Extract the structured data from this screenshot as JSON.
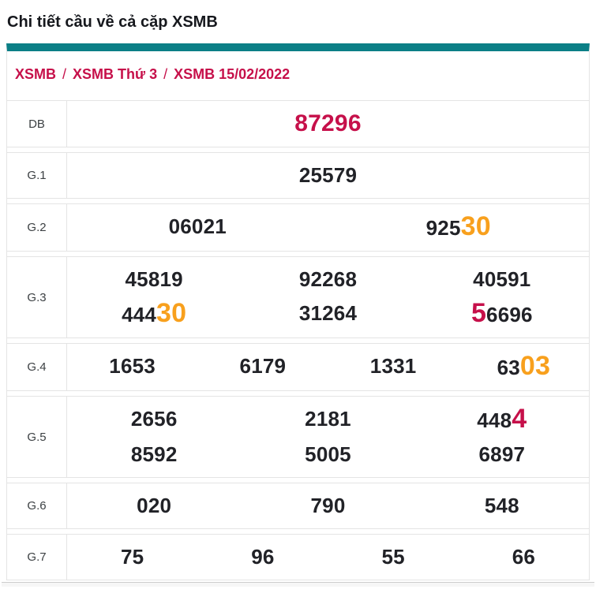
{
  "page_title": "Chi tiết cầu về cả cặp XSMB",
  "breadcrumb": {
    "separator": "/",
    "items": [
      {
        "label": "XSMB"
      },
      {
        "label": "XSMB Thứ 3"
      },
      {
        "label": "XSMB 15/02/2022"
      }
    ]
  },
  "colors": {
    "teal": "#0b7f86",
    "crimson": "#c6104a",
    "orange": "#f8a01d",
    "number": "#212227",
    "border": "#e4e4e4",
    "label": "#3c4043",
    "title": "#16181d",
    "strip_bg": "#f6f6f6",
    "strip_border": "#cdcdcd"
  },
  "results": {
    "highlight_legend": {
      "o": "orange-highlight-digits",
      "r": "crimson-highlight-digits",
      "db": "special-prize-crimson",
      "n": "normal-digits"
    },
    "rows": [
      {
        "label": "DB",
        "lines": [
          [
            [
              {
                "t": "87296",
                "s": "db"
              }
            ]
          ]
        ]
      },
      {
        "label": "G.1",
        "lines": [
          [
            [
              {
                "t": "25579",
                "s": "n"
              }
            ]
          ]
        ]
      },
      {
        "label": "G.2",
        "lines": [
          [
            [
              {
                "t": "06021",
                "s": "n"
              }
            ],
            [
              {
                "t": "925",
                "s": "n"
              },
              {
                "t": "30",
                "s": "o"
              }
            ]
          ]
        ]
      },
      {
        "label": "G.3",
        "lines": [
          [
            [
              {
                "t": "45819",
                "s": "n"
              }
            ],
            [
              {
                "t": "92268",
                "s": "n"
              }
            ],
            [
              {
                "t": "40591",
                "s": "n"
              }
            ]
          ],
          [
            [
              {
                "t": "444",
                "s": "n"
              },
              {
                "t": "30",
                "s": "o"
              }
            ],
            [
              {
                "t": "31264",
                "s": "n"
              }
            ],
            [
              {
                "t": "5",
                "s": "r"
              },
              {
                "t": "6696",
                "s": "n"
              }
            ]
          ]
        ]
      },
      {
        "label": "G.4",
        "lines": [
          [
            [
              {
                "t": "1653",
                "s": "n"
              }
            ],
            [
              {
                "t": "6179",
                "s": "n"
              }
            ],
            [
              {
                "t": "1331",
                "s": "n"
              }
            ],
            [
              {
                "t": "63",
                "s": "n"
              },
              {
                "t": "03",
                "s": "o"
              }
            ]
          ]
        ]
      },
      {
        "label": "G.5",
        "lines": [
          [
            [
              {
                "t": "2656",
                "s": "n"
              }
            ],
            [
              {
                "t": "2181",
                "s": "n"
              }
            ],
            [
              {
                "t": "448",
                "s": "n"
              },
              {
                "t": "4",
                "s": "r"
              }
            ]
          ],
          [
            [
              {
                "t": "8592",
                "s": "n"
              }
            ],
            [
              {
                "t": "5005",
                "s": "n"
              }
            ],
            [
              {
                "t": "6897",
                "s": "n"
              }
            ]
          ]
        ]
      },
      {
        "label": "G.6",
        "lines": [
          [
            [
              {
                "t": "020",
                "s": "n"
              }
            ],
            [
              {
                "t": "790",
                "s": "n"
              }
            ],
            [
              {
                "t": "548",
                "s": "n"
              }
            ]
          ]
        ]
      },
      {
        "label": "G.7",
        "lines": [
          [
            [
              {
                "t": "75",
                "s": "n"
              }
            ],
            [
              {
                "t": "96",
                "s": "n"
              }
            ],
            [
              {
                "t": "55",
                "s": "n"
              }
            ],
            [
              {
                "t": "66",
                "s": "n"
              }
            ]
          ]
        ]
      }
    ]
  }
}
